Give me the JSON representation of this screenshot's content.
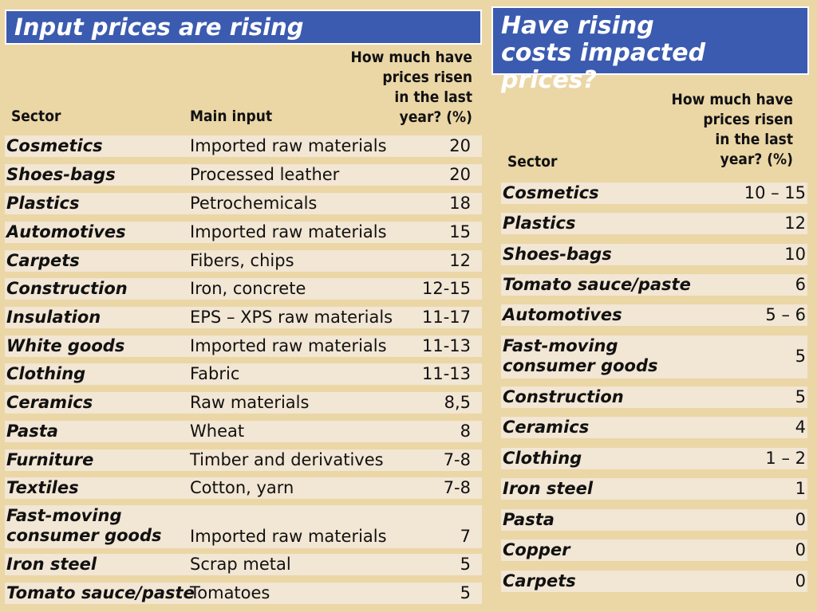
{
  "left": {
    "title": "Input prices are rising",
    "headers": {
      "sector": "Sector",
      "main_input": "Main input",
      "change": [
        "How much have",
        "prices risen",
        "in the last",
        "year? (%)"
      ]
    },
    "rows": [
      {
        "sector": "Cosmetics",
        "input": "Imported raw materials",
        "value": "20"
      },
      {
        "sector": "Shoes-bags",
        "input": "Processed leather",
        "value": "20"
      },
      {
        "sector": "Plastics",
        "input": "Petrochemicals",
        "value": "18"
      },
      {
        "sector": "Automotives",
        "input": "Imported raw materials",
        "value": "15"
      },
      {
        "sector": "Carpets",
        "input": "Fibers, chips",
        "value": "12"
      },
      {
        "sector": "Construction",
        "input": "Iron, concrete",
        "value": "12-15"
      },
      {
        "sector": "Insulation",
        "input": "EPS – XPS raw materials",
        "value": "11-17"
      },
      {
        "sector": "White goods",
        "input": "Imported raw materials",
        "value": "11-13"
      },
      {
        "sector": "Clothing",
        "input": "Fabric",
        "value": "11-13"
      },
      {
        "sector": "Ceramics",
        "input": "Raw materials",
        "value": "8,5"
      },
      {
        "sector": "Pasta",
        "input": "Wheat",
        "value": "8"
      },
      {
        "sector": "Furniture",
        "input": "Timber and derivatives",
        "value": "7-8"
      },
      {
        "sector": "Textiles",
        "input": "Cotton, yarn",
        "value": "7-8"
      },
      {
        "sector": [
          "Fast-moving",
          "consumer goods"
        ],
        "input": "Imported raw materials",
        "value": "7"
      },
      {
        "sector": "Iron steel",
        "input": "Scrap metal",
        "value": "5"
      },
      {
        "sector": "Tomato sauce/paste",
        "input": "Tomatoes",
        "value": "5"
      }
    ]
  },
  "right": {
    "title": [
      "Have rising",
      "costs impacted prices?"
    ],
    "headers": {
      "sector": "Sector",
      "change": [
        "How much have",
        "prices risen",
        "in the last",
        "year? (%)"
      ]
    },
    "rows": [
      {
        "sector": "Cosmetics",
        "value": "10 – 15"
      },
      {
        "sector": "Plastics",
        "value": "12"
      },
      {
        "sector": "Shoes-bags",
        "value": "10"
      },
      {
        "sector": "Tomato sauce/paste",
        "value": "6"
      },
      {
        "sector": "Automotives",
        "value": "5 – 6"
      },
      {
        "sector": [
          "Fast-moving",
          "consumer goods"
        ],
        "value": "5"
      },
      {
        "sector": "Construction",
        "value": "5"
      },
      {
        "sector": "Ceramics",
        "value": "4"
      },
      {
        "sector": "Clothing",
        "value": "1 – 2"
      },
      {
        "sector": "Iron steel",
        "value": "1"
      },
      {
        "sector": "Pasta",
        "value": "0"
      },
      {
        "sector": "Copper",
        "value": "0"
      },
      {
        "sector": "Carpets",
        "value": "0"
      }
    ]
  }
}
